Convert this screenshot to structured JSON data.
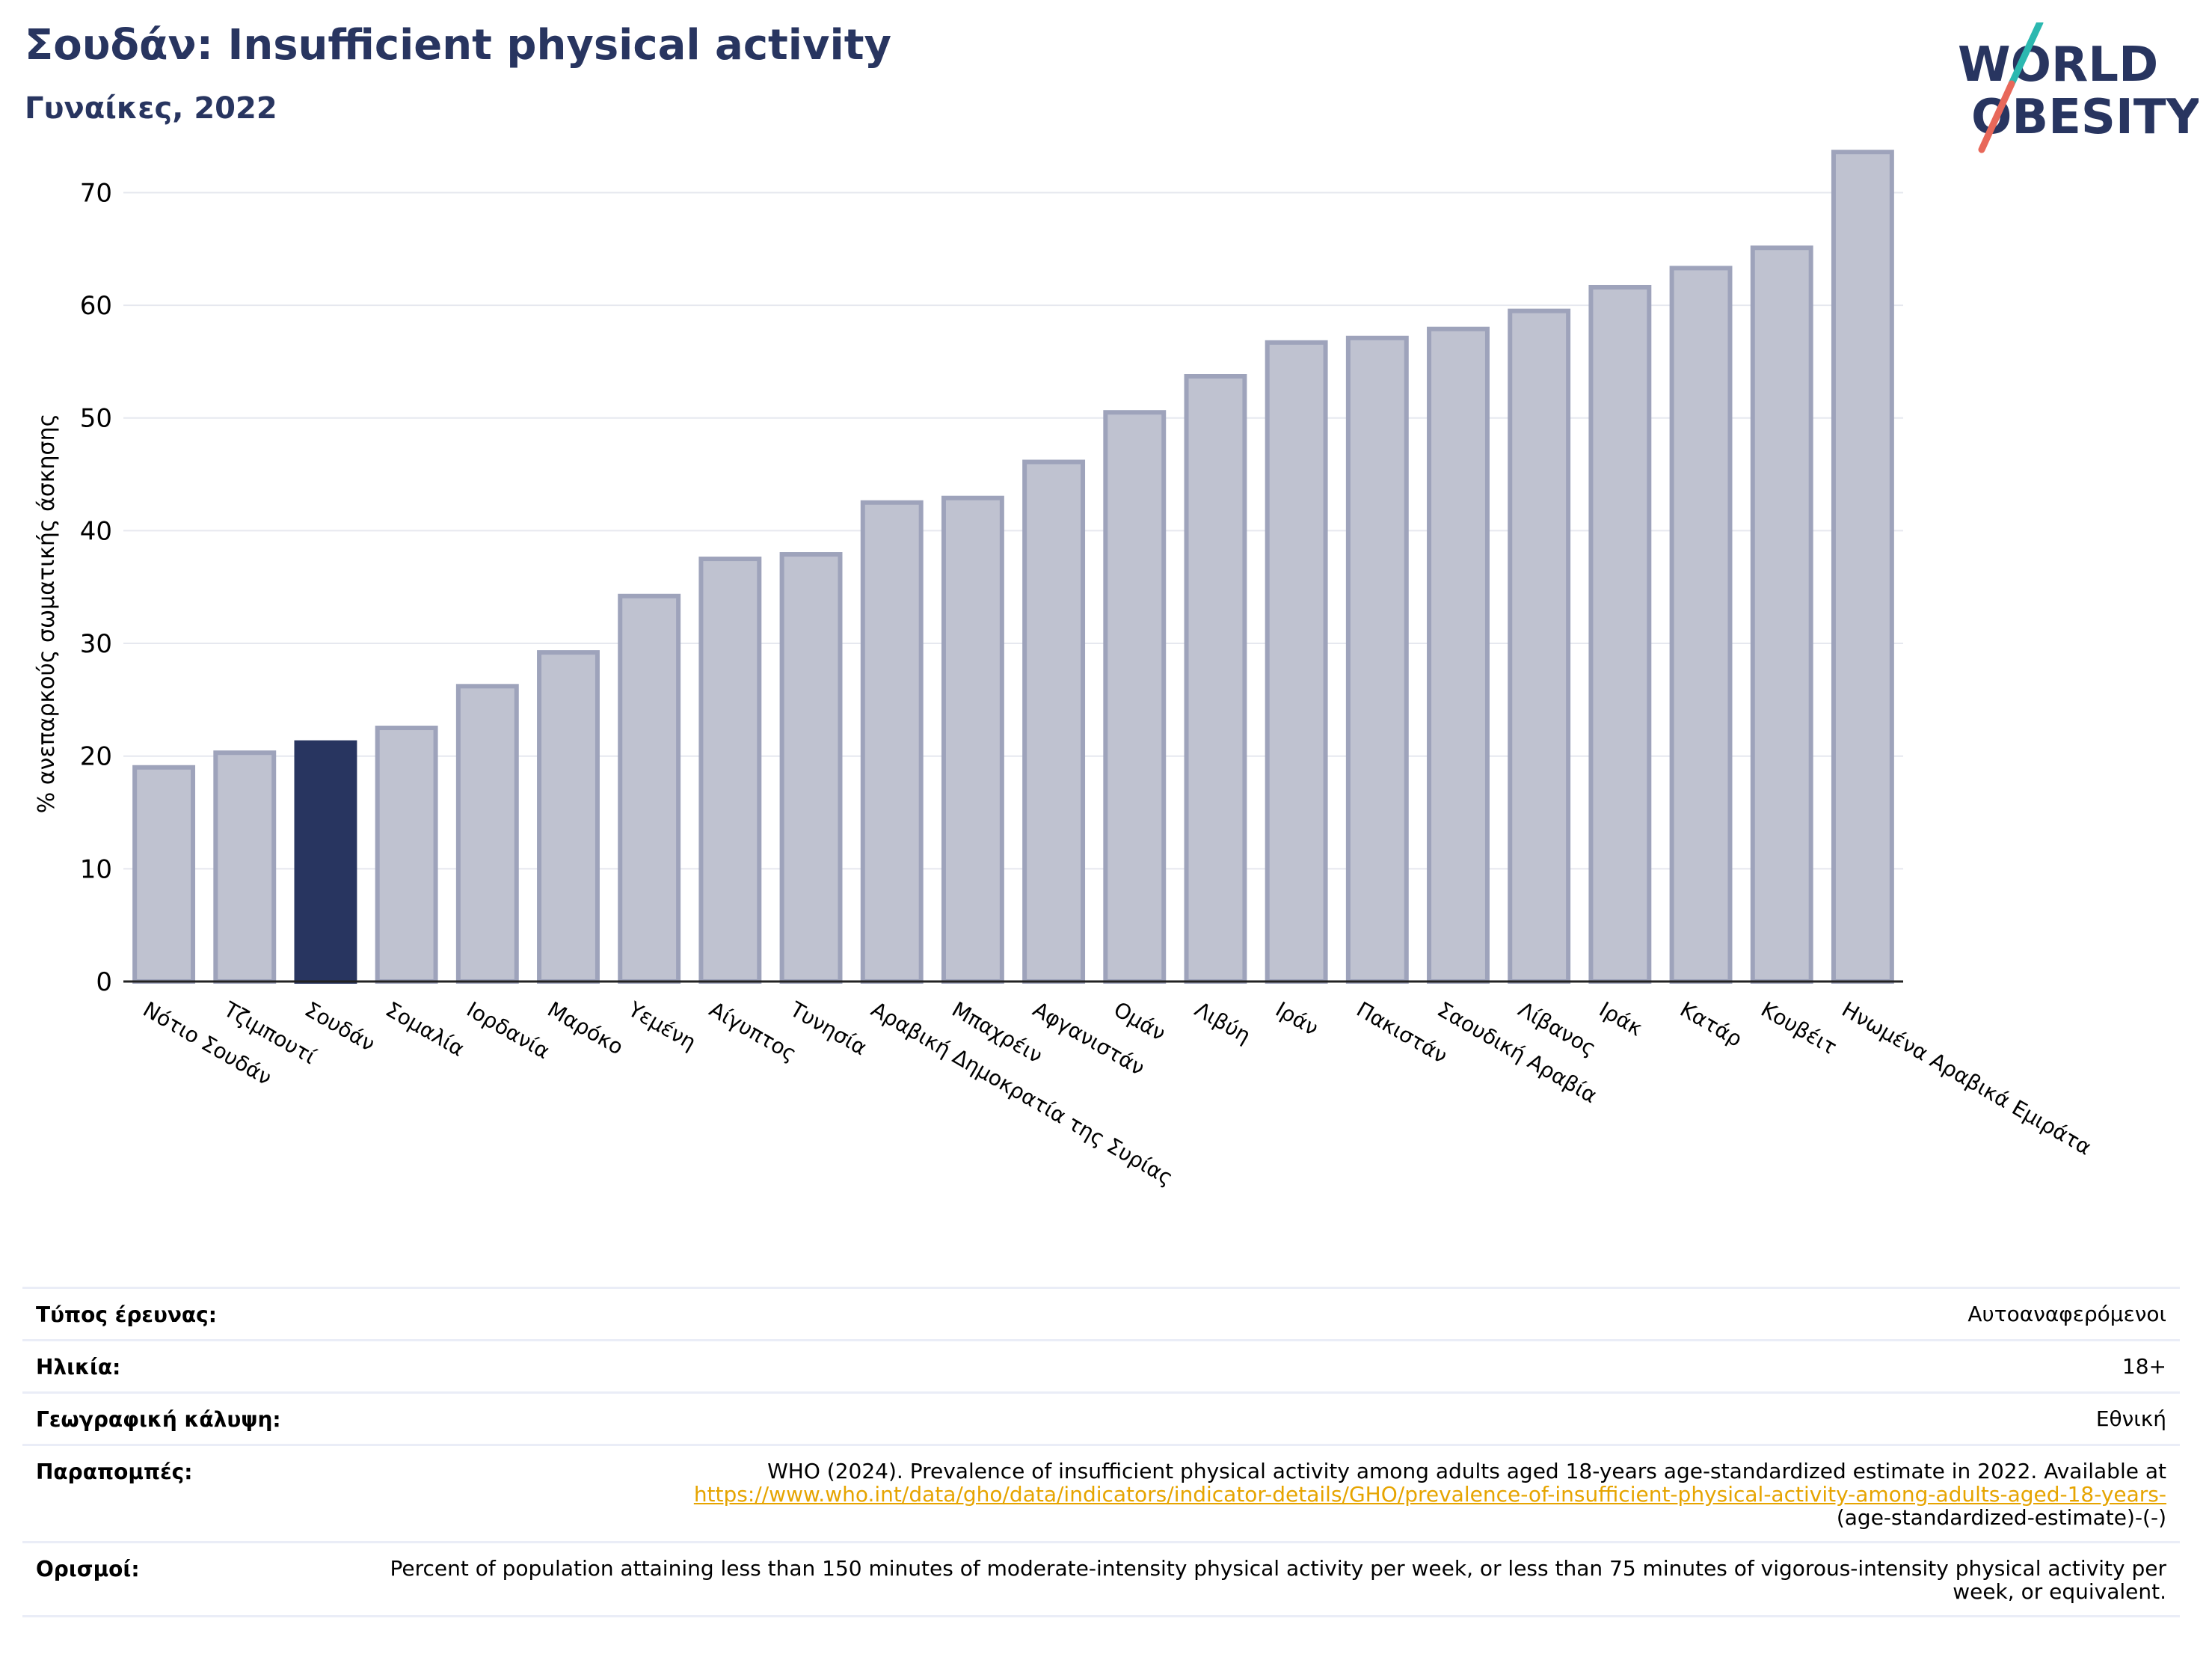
{
  "header": {
    "title": "Σουδάν: Insufficient physical activity",
    "subtitle": "Γυναίκες, 2022"
  },
  "logo": {
    "line1": "WORLD",
    "line2": "OBESITY"
  },
  "colors": {
    "highlight_bar": "#283560",
    "default_bar_fill": "#bfc2d0",
    "default_bar_stroke": "#9ea3bb",
    "title": "#283560",
    "link": "#e6a400",
    "logo_slash_top": "#2cb8b0",
    "logo_slash_bottom": "#e8685a"
  },
  "chart_data": {
    "type": "bar",
    "ylabel": "% ανεπαρκούς σωματικής άσκησης",
    "ylim": [
      0,
      75
    ],
    "yticks": [
      0,
      10,
      20,
      30,
      40,
      50,
      60,
      70
    ],
    "grid": true,
    "highlight_category": "Σουδάν",
    "categories": [
      "Νότιο Σουδάν",
      "Τζιμπουτί",
      "Σουδάν",
      "Σομαλία",
      "Ιορδανία",
      "Μαρόκο",
      "Υεμένη",
      "Αίγυπτος",
      "Τυνησία",
      "Αραβική Δημοκρατία της Συρίας",
      "Μπαχρέιν",
      "Αφγανιστάν",
      "Ομάν",
      "Λιβύη",
      "Ιράν",
      "Πακιστάν",
      "Σαουδική Αραβία",
      "Λίβανος",
      "Ιράκ",
      "Κατάρ",
      "Κουβέιτ",
      "Ηνωμένα Αραβικά Εμιράτα"
    ],
    "values": [
      19.0,
      20.3,
      21.2,
      22.5,
      26.2,
      29.2,
      34.2,
      37.5,
      37.9,
      42.5,
      42.9,
      46.1,
      50.5,
      53.7,
      56.7,
      57.1,
      57.9,
      59.5,
      61.6,
      63.3,
      65.1,
      73.6
    ]
  },
  "info": {
    "rows": [
      {
        "label": "Τύπος έρευνας:",
        "value": "Αυτοαναφερόμενοι"
      },
      {
        "label": "Ηλικία:",
        "value": "18+"
      },
      {
        "label": "Γεωγραφική κάλυψη:",
        "value": "Εθνική"
      },
      {
        "label": "Παραπομπές:",
        "value_pre": "WHO (2024). Prevalence of insufficient physical activity among adults aged 18-years age-standardized estimate in 2022. Available at",
        "value_link": "https://www.who.int/data/gho/data/indicators/indicator-details/GHO/prevalence-of-insufficient-physical-activity-among-adults-aged-18-years-",
        "value_post": "(age-standardized-estimate)-(-)"
      },
      {
        "label": "Ορισμοί:",
        "value": "Percent of population attaining less than 150 minutes of moderate-intensity physical activity per week, or less than 75 minutes of vigorous-intensity physical activity per week, or equivalent."
      }
    ]
  }
}
